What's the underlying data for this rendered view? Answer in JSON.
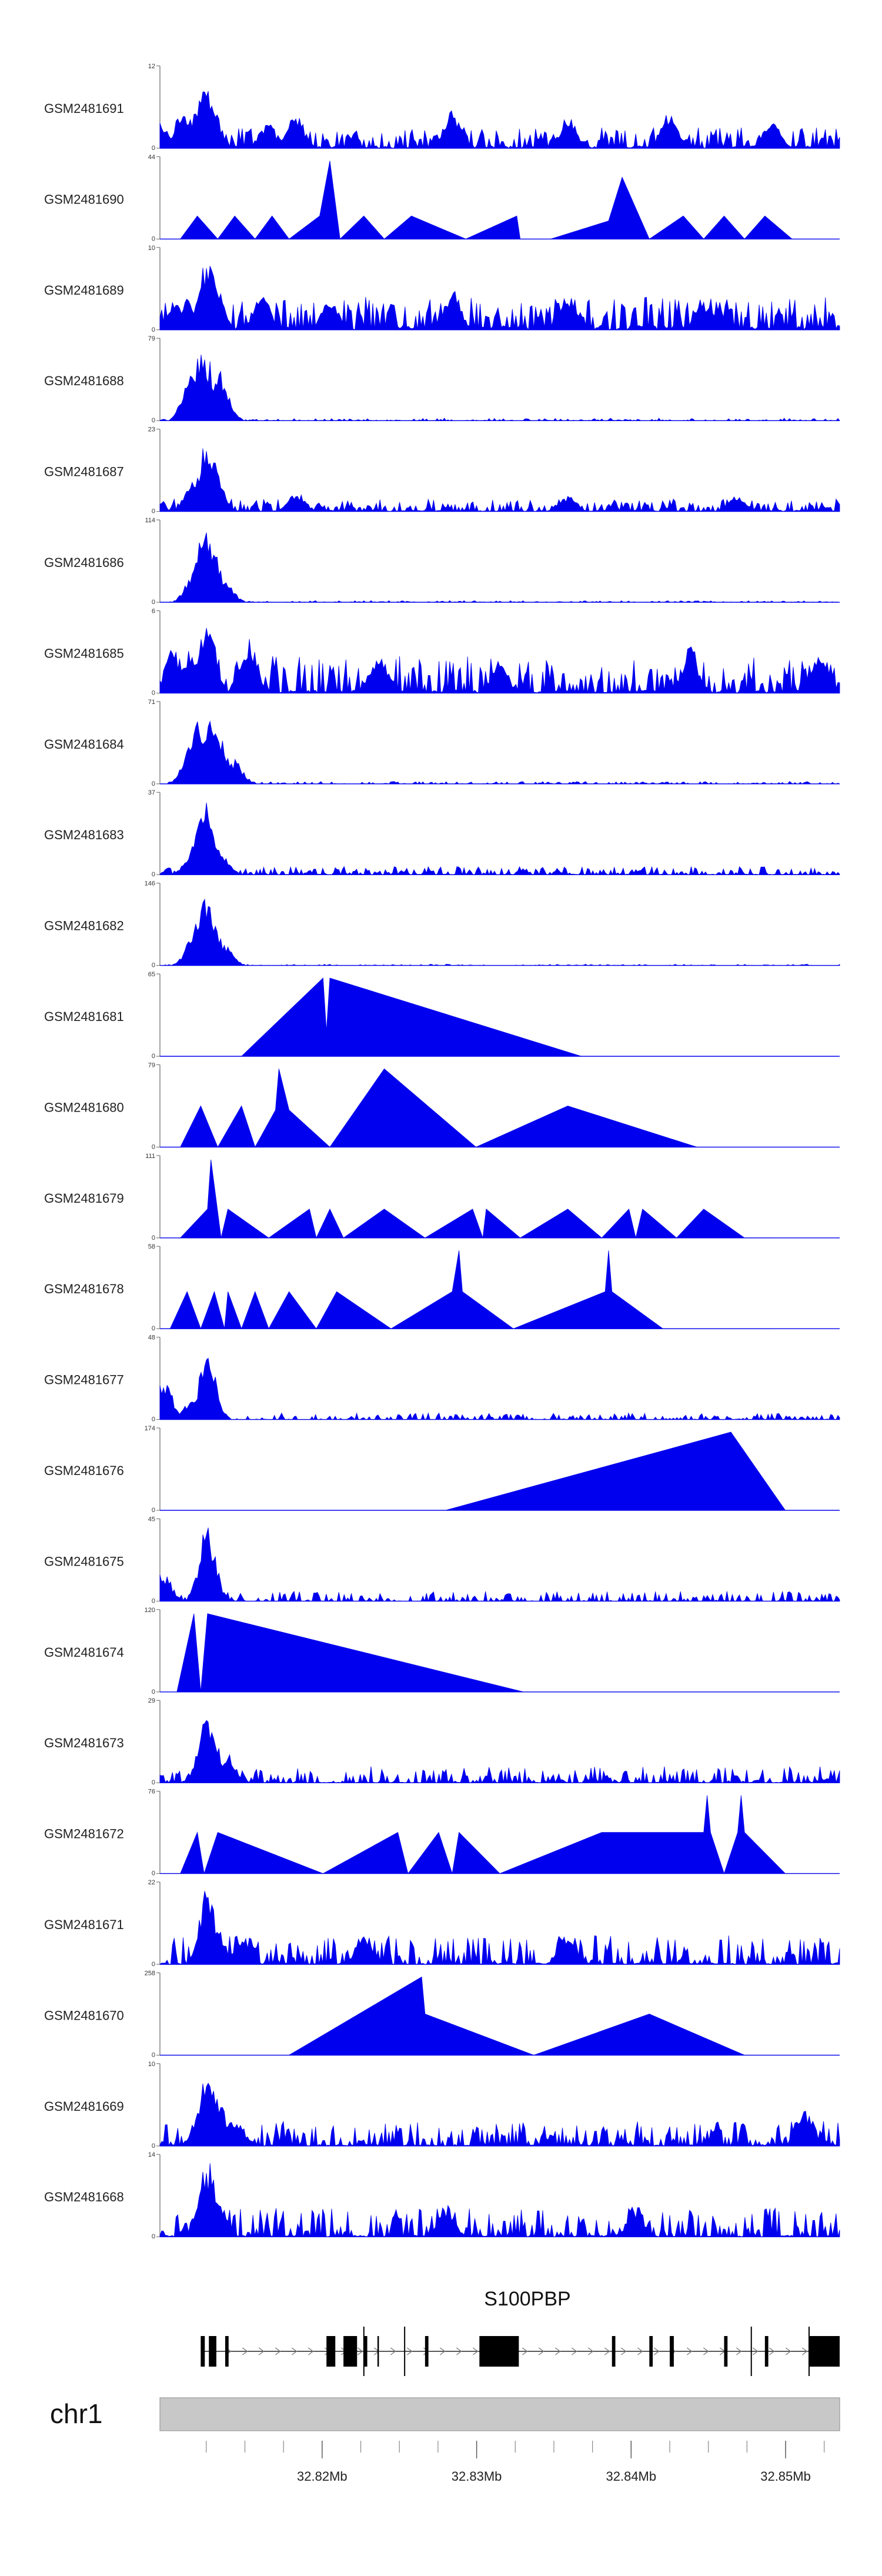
{
  "chart_data": {
    "type": "area",
    "title": "",
    "chromosome": "chr1",
    "gene": "S100PBP",
    "x_range_mb": [
      32.8095,
      32.8535
    ],
    "axis_ticks": [
      {
        "pos": 32.82,
        "label": "32.82Mb"
      },
      {
        "pos": 32.83,
        "label": "32.83Mb"
      },
      {
        "pos": 32.84,
        "label": "32.84Mb"
      },
      {
        "pos": 32.85,
        "label": "32.85Mb"
      }
    ],
    "tracks": [
      {
        "name": "GSM2481691",
        "max_label": "12",
        "min_label": "0",
        "ymax": 12,
        "style": "dense",
        "peaks": [
          [
            0.0,
            0.35
          ],
          [
            0.035,
            0.55
          ],
          [
            0.065,
            0.9
          ],
          [
            0.075,
            0.6
          ],
          [
            0.16,
            0.3
          ],
          [
            0.2,
            0.45
          ],
          [
            0.43,
            0.5
          ],
          [
            0.6,
            0.4
          ],
          [
            0.75,
            0.45
          ],
          [
            0.9,
            0.35
          ]
        ],
        "noise": [
          0.08,
          0.25
        ]
      },
      {
        "name": "GSM2481690",
        "max_label": "44",
        "min_label": "0",
        "ymax": 44,
        "style": "peaks",
        "peaks": [
          [
            0.03,
            0.0
          ],
          [
            0.055,
            0.28
          ],
          [
            0.085,
            0.0
          ],
          [
            0.11,
            0.28
          ],
          [
            0.14,
            0.0
          ],
          [
            0.165,
            0.28
          ],
          [
            0.19,
            0.0
          ],
          [
            0.235,
            0.28
          ],
          [
            0.25,
            0.95
          ],
          [
            0.265,
            0.0
          ],
          [
            0.3,
            0.28
          ],
          [
            0.33,
            0.0
          ],
          [
            0.37,
            0.28
          ],
          [
            0.45,
            0.0
          ],
          [
            0.525,
            0.28
          ],
          [
            0.53,
            0.0
          ],
          [
            0.565,
            0.0
          ],
          [
            0.575,
            0.0
          ],
          [
            0.66,
            0.22
          ],
          [
            0.68,
            0.75
          ],
          [
            0.72,
            0.0
          ],
          [
            0.77,
            0.28
          ],
          [
            0.8,
            0.0
          ],
          [
            0.83,
            0.28
          ],
          [
            0.86,
            0.0
          ],
          [
            0.89,
            0.28
          ],
          [
            0.93,
            0.0
          ],
          [
            0.96,
            0.0
          ]
        ]
      },
      {
        "name": "GSM2481689",
        "max_label": "10",
        "min_label": "0",
        "ymax": 10,
        "style": "dense",
        "peaks": [
          [
            0.02,
            0.35
          ],
          [
            0.04,
            0.4
          ],
          [
            0.07,
            0.95
          ],
          [
            0.08,
            0.6
          ],
          [
            0.15,
            0.45
          ],
          [
            0.25,
            0.4
          ],
          [
            0.43,
            0.5
          ],
          [
            0.6,
            0.45
          ],
          [
            0.8,
            0.4
          ]
        ],
        "noise": [
          0.15,
          0.4
        ]
      },
      {
        "name": "GSM2481688",
        "max_label": "79",
        "min_label": "0",
        "ymax": 79,
        "style": "dense",
        "peaks": [
          [
            0.045,
            0.55
          ],
          [
            0.06,
            0.95
          ],
          [
            0.07,
            0.8
          ],
          [
            0.09,
            0.6
          ]
        ],
        "noise": [
          0.0,
          0.03
        ]
      },
      {
        "name": "GSM2481687",
        "max_label": "23",
        "min_label": "0",
        "ymax": 23,
        "style": "dense",
        "peaks": [
          [
            0.05,
            0.45
          ],
          [
            0.07,
            0.95
          ],
          [
            0.08,
            0.55
          ],
          [
            0.2,
            0.25
          ],
          [
            0.6,
            0.2
          ],
          [
            0.85,
            0.2
          ]
        ],
        "noise": [
          0.04,
          0.15
        ]
      },
      {
        "name": "GSM2481686",
        "max_label": "114",
        "min_label": "0",
        "ymax": 114,
        "style": "dense",
        "peaks": [
          [
            0.05,
            0.4
          ],
          [
            0.065,
            0.98
          ],
          [
            0.08,
            0.6
          ],
          [
            0.095,
            0.3
          ]
        ],
        "noise": [
          0.0,
          0.02
        ]
      },
      {
        "name": "GSM2481685",
        "max_label": "6",
        "min_label": "0",
        "ymax": 6,
        "style": "dense",
        "peaks": [
          [
            0.02,
            0.6
          ],
          [
            0.045,
            0.55
          ],
          [
            0.07,
            0.95
          ],
          [
            0.13,
            0.7
          ],
          [
            0.32,
            0.5
          ],
          [
            0.5,
            0.4
          ],
          [
            0.78,
            0.6
          ],
          [
            0.97,
            0.5
          ]
        ],
        "noise": [
          0.1,
          0.45
        ]
      },
      {
        "name": "GSM2481684",
        "max_label": "71",
        "min_label": "0",
        "ymax": 71,
        "style": "dense",
        "peaks": [
          [
            0.045,
            0.5
          ],
          [
            0.06,
            0.9
          ],
          [
            0.075,
            0.8
          ],
          [
            0.09,
            0.55
          ],
          [
            0.11,
            0.3
          ]
        ],
        "noise": [
          0.0,
          0.03
        ]
      },
      {
        "name": "GSM2481683",
        "max_label": "37",
        "min_label": "0",
        "ymax": 37,
        "style": "dense",
        "peaks": [
          [
            0.05,
            0.35
          ],
          [
            0.065,
            0.95
          ],
          [
            0.075,
            0.5
          ],
          [
            0.09,
            0.3
          ]
        ],
        "noise": [
          0.02,
          0.1
        ]
      },
      {
        "name": "GSM2481682",
        "max_label": "146",
        "min_label": "0",
        "ymax": 146,
        "style": "dense",
        "peaks": [
          [
            0.05,
            0.4
          ],
          [
            0.065,
            0.95
          ],
          [
            0.08,
            0.5
          ],
          [
            0.095,
            0.25
          ]
        ],
        "noise": [
          0.0,
          0.015
        ]
      },
      {
        "name": "GSM2481681",
        "max_label": "65",
        "min_label": "0",
        "ymax": 65,
        "style": "peaks",
        "peaks": [
          [
            0.12,
            0.0
          ],
          [
            0.24,
            0.95
          ],
          [
            0.245,
            0.3
          ],
          [
            0.25,
            0.95
          ],
          [
            0.62,
            0.0
          ]
        ]
      },
      {
        "name": "GSM2481680",
        "max_label": "79",
        "min_label": "0",
        "ymax": 79,
        "style": "peaks",
        "peaks": [
          [
            0.03,
            0.0
          ],
          [
            0.06,
            0.5
          ],
          [
            0.085,
            0.0
          ],
          [
            0.12,
            0.5
          ],
          [
            0.14,
            0.0
          ],
          [
            0.17,
            0.45
          ],
          [
            0.175,
            0.95
          ],
          [
            0.19,
            0.45
          ],
          [
            0.25,
            0.0
          ],
          [
            0.33,
            0.95
          ],
          [
            0.465,
            0.0
          ],
          [
            0.6,
            0.5
          ],
          [
            0.79,
            0.0
          ]
        ]
      },
      {
        "name": "GSM2481679",
        "max_label": "111",
        "min_label": "0",
        "ymax": 111,
        "style": "peaks",
        "peaks": [
          [
            0.03,
            0.0
          ],
          [
            0.07,
            0.35
          ],
          [
            0.075,
            0.95
          ],
          [
            0.09,
            0.0
          ],
          [
            0.1,
            0.35
          ],
          [
            0.16,
            0.0
          ],
          [
            0.22,
            0.35
          ],
          [
            0.23,
            0.0
          ],
          [
            0.25,
            0.35
          ],
          [
            0.27,
            0.0
          ],
          [
            0.33,
            0.35
          ],
          [
            0.39,
            0.0
          ],
          [
            0.46,
            0.35
          ],
          [
            0.475,
            0.0
          ],
          [
            0.48,
            0.35
          ],
          [
            0.53,
            0.0
          ],
          [
            0.6,
            0.35
          ],
          [
            0.65,
            0.0
          ],
          [
            0.69,
            0.35
          ],
          [
            0.7,
            0.0
          ],
          [
            0.71,
            0.35
          ],
          [
            0.76,
            0.0
          ],
          [
            0.8,
            0.35
          ],
          [
            0.86,
            0.0
          ],
          [
            0.9,
            0.0
          ]
        ]
      },
      {
        "name": "GSM2481678",
        "max_label": "58",
        "min_label": "0",
        "ymax": 58,
        "style": "peaks",
        "peaks": [
          [
            0.015,
            0.0
          ],
          [
            0.04,
            0.45
          ],
          [
            0.06,
            0.0
          ],
          [
            0.08,
            0.45
          ],
          [
            0.095,
            0.0
          ],
          [
            0.1,
            0.45
          ],
          [
            0.12,
            0.0
          ],
          [
            0.14,
            0.45
          ],
          [
            0.16,
            0.0
          ],
          [
            0.19,
            0.45
          ],
          [
            0.23,
            0.0
          ],
          [
            0.26,
            0.45
          ],
          [
            0.34,
            0.0
          ],
          [
            0.43,
            0.45
          ],
          [
            0.44,
            0.95
          ],
          [
            0.445,
            0.45
          ],
          [
            0.52,
            0.0
          ],
          [
            0.655,
            0.45
          ],
          [
            0.66,
            0.95
          ],
          [
            0.665,
            0.45
          ],
          [
            0.74,
            0.0
          ],
          [
            0.9,
            0.0
          ]
        ]
      },
      {
        "name": "GSM2481677",
        "max_label": "48",
        "min_label": "0",
        "ymax": 48,
        "style": "dense",
        "peaks": [
          [
            0.005,
            0.55
          ],
          [
            0.045,
            0.25
          ],
          [
            0.07,
            0.95
          ],
          [
            0.075,
            0.4
          ]
        ],
        "noise": [
          0.0,
          0.08
        ]
      },
      {
        "name": "GSM2481676",
        "max_label": "174",
        "min_label": "0",
        "ymax": 174,
        "style": "peaks",
        "peaks": [
          [
            0.42,
            0.0
          ],
          [
            0.84,
            0.95
          ],
          [
            0.92,
            0.0
          ]
        ]
      },
      {
        "name": "GSM2481675",
        "max_label": "45",
        "min_label": "0",
        "ymax": 45,
        "style": "dense",
        "peaks": [
          [
            0.005,
            0.35
          ],
          [
            0.07,
            0.95
          ],
          [
            0.075,
            0.4
          ]
        ],
        "noise": [
          0.0,
          0.12
        ]
      },
      {
        "name": "GSM2481674",
        "max_label": "120",
        "min_label": "0",
        "ymax": 120,
        "style": "peaks",
        "peaks": [
          [
            0.025,
            0.0
          ],
          [
            0.05,
            0.95
          ],
          [
            0.06,
            0.0
          ],
          [
            0.07,
            0.95
          ],
          [
            0.535,
            0.0
          ]
        ]
      },
      {
        "name": "GSM2481673",
        "max_label": "29",
        "min_label": "0",
        "ymax": 29,
        "style": "dense",
        "peaks": [
          [
            0.07,
            0.95
          ],
          [
            0.08,
            0.5
          ],
          [
            0.1,
            0.35
          ]
        ],
        "noise": [
          0.02,
          0.2
        ]
      },
      {
        "name": "GSM2481672",
        "max_label": "76",
        "min_label": "0",
        "ymax": 76,
        "style": "peaks",
        "peaks": [
          [
            0.03,
            0.0
          ],
          [
            0.055,
            0.5
          ],
          [
            0.065,
            0.0
          ],
          [
            0.085,
            0.5
          ],
          [
            0.24,
            0.0
          ],
          [
            0.35,
            0.5
          ],
          [
            0.365,
            0.0
          ],
          [
            0.41,
            0.5
          ],
          [
            0.43,
            0.0
          ],
          [
            0.44,
            0.5
          ],
          [
            0.5,
            0.0
          ],
          [
            0.65,
            0.5
          ],
          [
            0.8,
            0.5
          ],
          [
            0.805,
            0.95
          ],
          [
            0.81,
            0.5
          ],
          [
            0.83,
            0.0
          ],
          [
            0.85,
            0.5
          ],
          [
            0.855,
            0.95
          ],
          [
            0.86,
            0.5
          ],
          [
            0.92,
            0.0
          ]
        ]
      },
      {
        "name": "GSM2481671",
        "max_label": "22",
        "min_label": "0",
        "ymax": 22,
        "style": "dense",
        "peaks": [
          [
            0.07,
            0.95
          ],
          [
            0.08,
            0.6
          ],
          [
            0.12,
            0.4
          ],
          [
            0.3,
            0.4
          ],
          [
            0.6,
            0.4
          ]
        ],
        "noise": [
          0.05,
          0.35
        ]
      },
      {
        "name": "GSM2481670",
        "max_label": "258",
        "min_label": "0",
        "ymax": 258,
        "style": "peaks",
        "peaks": [
          [
            0.19,
            0.0
          ],
          [
            0.385,
            0.95
          ],
          [
            0.39,
            0.5
          ],
          [
            0.55,
            0.0
          ],
          [
            0.72,
            0.5
          ],
          [
            0.86,
            0.0
          ]
        ]
      },
      {
        "name": "GSM2481669",
        "max_label": "10",
        "min_label": "0",
        "ymax": 10,
        "style": "dense",
        "peaks": [
          [
            0.06,
            0.45
          ],
          [
            0.07,
            0.95
          ],
          [
            0.085,
            0.6
          ],
          [
            0.11,
            0.4
          ],
          [
            0.95,
            0.45
          ]
        ],
        "noise": [
          0.05,
          0.3
        ]
      },
      {
        "name": "GSM2481668",
        "max_label": "14",
        "min_label": "0",
        "ymax": 14,
        "style": "dense",
        "peaks": [
          [
            0.07,
            0.95
          ],
          [
            0.085,
            0.5
          ],
          [
            0.42,
            0.4
          ],
          [
            0.7,
            0.4
          ]
        ],
        "noise": [
          0.05,
          0.35
        ]
      }
    ],
    "gene_model": {
      "exons": [
        [
          0.06,
          0.066
        ],
        [
          0.072,
          0.083
        ],
        [
          0.096,
          0.101
        ],
        [
          0.245,
          0.258
        ],
        [
          0.27,
          0.29
        ],
        [
          0.3,
          0.305
        ],
        [
          0.32,
          0.322
        ],
        [
          0.39,
          0.395
        ],
        [
          0.47,
          0.528
        ],
        [
          0.665,
          0.67
        ],
        [
          0.72,
          0.725
        ],
        [
          0.75,
          0.756
        ],
        [
          0.83,
          0.835
        ],
        [
          0.89,
          0.895
        ],
        [
          0.955,
          1.0
        ]
      ],
      "thin_lines": [
        0.3,
        0.36,
        0.87,
        0.955
      ]
    }
  }
}
